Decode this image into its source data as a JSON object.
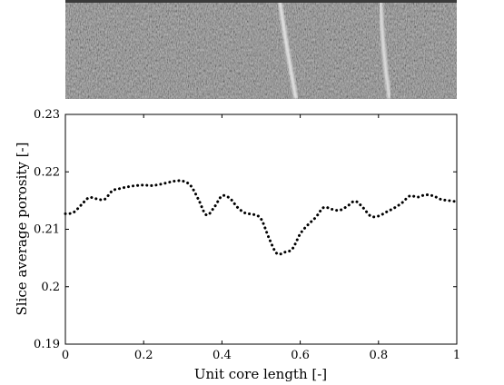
{
  "image_panel": {
    "description_kind": "grayscale-core-slice",
    "colors": {
      "base": "#6e6e6e",
      "dark": "#3a3a3a",
      "light": "#d8d8d8"
    }
  },
  "chart_data": {
    "type": "line",
    "title": "",
    "xlabel": "Unit core length [-]",
    "ylabel": "Slice average porosity [-]",
    "xlim": [
      0,
      1
    ],
    "ylim": [
      0.19,
      0.23
    ],
    "xticks": [
      0,
      0.2,
      0.4,
      0.6,
      0.8,
      1
    ],
    "xtick_labels": [
      "0",
      "0.2",
      "0.4",
      "0.6",
      "0.8",
      "1"
    ],
    "yticks": [
      0.19,
      0.2,
      0.21,
      0.22,
      0.23
    ],
    "ytick_labels": [
      "0.19",
      "0.2",
      "0.21",
      "0.22",
      "0.23"
    ],
    "grid": false,
    "line_style": "dotted",
    "line_color": "#000000",
    "series": [
      {
        "x": [
          0,
          0.02,
          0.04,
          0.06,
          0.08,
          0.1,
          0.12,
          0.14,
          0.16,
          0.18,
          0.2,
          0.22,
          0.24,
          0.26,
          0.28,
          0.3,
          0.32,
          0.34,
          0.36,
          0.38,
          0.4,
          0.42,
          0.44,
          0.46,
          0.48,
          0.5,
          0.52,
          0.54,
          0.56,
          0.58,
          0.6,
          0.62,
          0.64,
          0.66,
          0.68,
          0.7,
          0.72,
          0.74,
          0.76,
          0.78,
          0.8,
          0.82,
          0.84,
          0.86,
          0.88,
          0.9,
          0.92,
          0.94,
          0.96,
          0.98,
          1
        ],
        "y": [
          0.2127,
          0.2129,
          0.2142,
          0.2155,
          0.2153,
          0.2152,
          0.2167,
          0.2171,
          0.2174,
          0.2176,
          0.2177,
          0.2176,
          0.2178,
          0.2181,
          0.2184,
          0.2184,
          0.2176,
          0.2152,
          0.2125,
          0.2138,
          0.2158,
          0.2154,
          0.2138,
          0.2128,
          0.2126,
          0.2118,
          0.2085,
          0.2058,
          0.206,
          0.2066,
          0.2092,
          0.2108,
          0.2121,
          0.2138,
          0.2135,
          0.2133,
          0.214,
          0.2149,
          0.2138,
          0.2123,
          0.2123,
          0.213,
          0.2137,
          0.2146,
          0.2158,
          0.2156,
          0.216,
          0.2158,
          0.2152,
          0.215,
          0.2148
        ]
      }
    ]
  }
}
